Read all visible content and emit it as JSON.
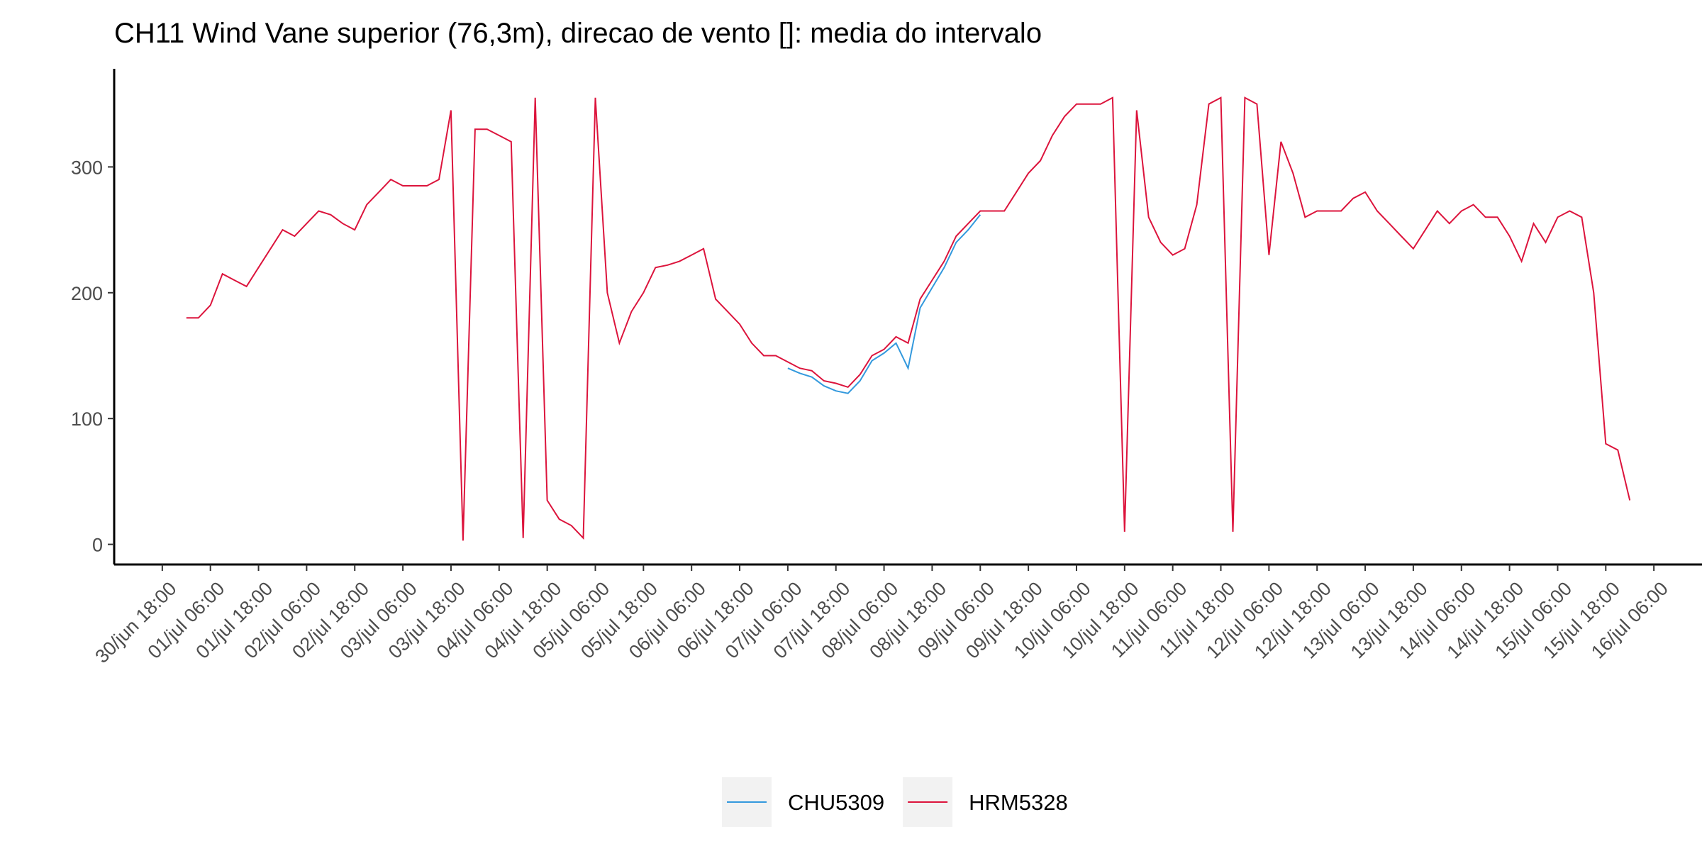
{
  "chart_data": {
    "type": "line",
    "title": "CH11 Wind Vane superior (76,3m), direcao de vento []: media do intervalo",
    "x": [
      "01/jul 00:00",
      "01/jul 03:00",
      "01/jul 06:00",
      "01/jul 09:00",
      "01/jul 12:00",
      "01/jul 15:00",
      "01/jul 18:00",
      "01/jul 21:00",
      "02/jul 00:00",
      "02/jul 03:00",
      "02/jul 06:00",
      "02/jul 09:00",
      "02/jul 12:00",
      "02/jul 15:00",
      "02/jul 18:00",
      "02/jul 21:00",
      "03/jul 00:00",
      "03/jul 03:00",
      "03/jul 06:00",
      "03/jul 09:00",
      "03/jul 12:00",
      "03/jul 15:00",
      "03/jul 18:00",
      "03/jul 21:00",
      "04/jul 00:00",
      "04/jul 03:00",
      "04/jul 06:00",
      "04/jul 09:00",
      "04/jul 12:00",
      "04/jul 15:00",
      "04/jul 18:00",
      "04/jul 21:00",
      "05/jul 00:00",
      "05/jul 03:00",
      "05/jul 06:00",
      "05/jul 09:00",
      "05/jul 12:00",
      "05/jul 15:00",
      "05/jul 18:00",
      "05/jul 21:00",
      "06/jul 00:00",
      "06/jul 03:00",
      "06/jul 06:00",
      "06/jul 09:00",
      "06/jul 12:00",
      "06/jul 15:00",
      "06/jul 18:00",
      "06/jul 21:00",
      "07/jul 00:00",
      "07/jul 03:00",
      "07/jul 06:00",
      "07/jul 09:00",
      "07/jul 12:00",
      "07/jul 15:00",
      "07/jul 18:00",
      "07/jul 21:00",
      "08/jul 00:00",
      "08/jul 03:00",
      "08/jul 06:00",
      "08/jul 09:00",
      "08/jul 12:00",
      "08/jul 15:00",
      "08/jul 18:00",
      "08/jul 21:00",
      "09/jul 00:00",
      "09/jul 03:00",
      "09/jul 06:00",
      "09/jul 09:00",
      "09/jul 12:00",
      "09/jul 15:00",
      "09/jul 18:00",
      "09/jul 21:00",
      "10/jul 00:00",
      "10/jul 03:00",
      "10/jul 06:00",
      "10/jul 09:00",
      "10/jul 12:00",
      "10/jul 15:00",
      "10/jul 18:00",
      "10/jul 21:00",
      "11/jul 00:00",
      "11/jul 03:00",
      "11/jul 06:00",
      "11/jul 09:00",
      "11/jul 12:00",
      "11/jul 15:00",
      "11/jul 18:00",
      "11/jul 21:00",
      "12/jul 00:00",
      "12/jul 03:00",
      "12/jul 06:00",
      "12/jul 09:00",
      "12/jul 12:00",
      "12/jul 15:00",
      "12/jul 18:00",
      "12/jul 21:00",
      "13/jul 00:00",
      "13/jul 03:00",
      "13/jul 06:00",
      "13/jul 09:00",
      "13/jul 12:00",
      "13/jul 15:00",
      "13/jul 18:00",
      "13/jul 21:00",
      "14/jul 00:00",
      "14/jul 03:00",
      "14/jul 06:00",
      "14/jul 09:00",
      "14/jul 12:00",
      "14/jul 15:00",
      "14/jul 18:00",
      "14/jul 21:00",
      "15/jul 00:00",
      "15/jul 03:00",
      "15/jul 06:00",
      "15/jul 09:00",
      "15/jul 12:00",
      "15/jul 15:00",
      "15/jul 18:00",
      "15/jul 21:00",
      "16/jul 00:00"
    ],
    "series": [
      {
        "name": "CHU5309",
        "color": "#3399dd",
        "values": [
          null,
          null,
          null,
          null,
          null,
          null,
          null,
          null,
          null,
          null,
          null,
          null,
          null,
          null,
          null,
          null,
          null,
          null,
          null,
          null,
          null,
          null,
          null,
          null,
          null,
          null,
          null,
          null,
          null,
          null,
          null,
          null,
          null,
          null,
          null,
          null,
          null,
          null,
          null,
          null,
          null,
          null,
          null,
          null,
          null,
          null,
          null,
          null,
          null,
          null,
          140,
          136,
          133,
          126,
          122,
          120,
          130,
          146,
          152,
          160,
          140,
          188,
          204,
          220,
          240,
          250,
          262,
          null,
          null,
          null,
          null,
          null,
          null,
          null,
          null,
          null,
          null,
          null,
          null,
          null,
          null,
          null,
          null,
          null,
          null,
          null,
          null,
          null,
          null,
          null,
          null,
          null,
          null,
          null,
          null,
          null,
          null,
          null,
          null,
          null,
          null,
          null,
          null,
          null,
          null,
          null,
          null,
          null,
          null,
          null,
          null,
          null,
          null,
          null,
          null,
          null,
          null,
          null,
          null,
          null,
          null
        ]
      },
      {
        "name": "HRM5328",
        "color": "#dc143c",
        "values": [
          180,
          180,
          190,
          215,
          210,
          205,
          220,
          235,
          250,
          245,
          255,
          265,
          262,
          255,
          250,
          270,
          280,
          290,
          285,
          285,
          285,
          290,
          345,
          3,
          330,
          330,
          325,
          320,
          5,
          355,
          35,
          20,
          15,
          5,
          355,
          200,
          160,
          185,
          200,
          220,
          222,
          225,
          230,
          235,
          195,
          185,
          175,
          160,
          150,
          150,
          145,
          140,
          138,
          130,
          128,
          125,
          135,
          150,
          155,
          165,
          160,
          195,
          210,
          225,
          245,
          255,
          265,
          265,
          265,
          280,
          295,
          305,
          325,
          340,
          350,
          350,
          350,
          355,
          10,
          345,
          260,
          240,
          230,
          235,
          270,
          350,
          355,
          10,
          355,
          350,
          230,
          320,
          295,
          260,
          265,
          265,
          265,
          275,
          280,
          265,
          255,
          245,
          235,
          250,
          265,
          255,
          265,
          270,
          260,
          260,
          245,
          225,
          255,
          240,
          260,
          265,
          260,
          200,
          80,
          75,
          35
        ]
      }
    ],
    "xlim": [
      "30/jun 06:00",
      "16/jul 18:00"
    ],
    "xticks": [
      "30/jun 18:00",
      "01/jul 06:00",
      "01/jul 18:00",
      "02/jul 06:00",
      "02/jul 18:00",
      "03/jul 06:00",
      "03/jul 18:00",
      "04/jul 06:00",
      "04/jul 18:00",
      "05/jul 06:00",
      "05/jul 18:00",
      "06/jul 06:00",
      "06/jul 18:00",
      "07/jul 06:00",
      "07/jul 18:00",
      "08/jul 06:00",
      "08/jul 18:00",
      "09/jul 06:00",
      "09/jul 18:00",
      "10/jul 06:00",
      "10/jul 18:00",
      "11/jul 06:00",
      "11/jul 18:00",
      "12/jul 06:00",
      "12/jul 18:00",
      "13/jul 06:00",
      "13/jul 18:00",
      "14/jul 06:00",
      "14/jul 18:00",
      "15/jul 06:00",
      "15/jul 18:00",
      "16/jul 06:00"
    ],
    "ylim": [
      -16,
      378
    ],
    "yticks": [
      0,
      100,
      200,
      300
    ],
    "grid": false,
    "legend": "bottom"
  }
}
